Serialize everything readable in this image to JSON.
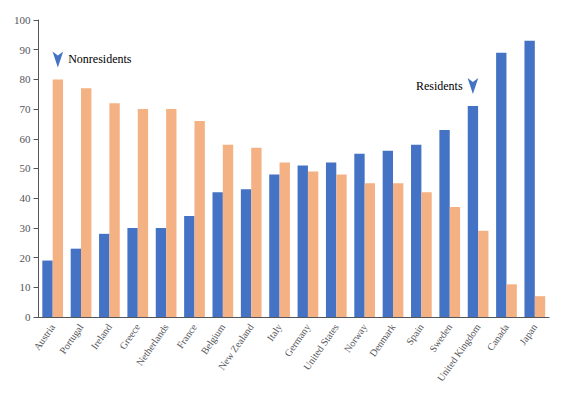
{
  "chart_data": {
    "type": "bar",
    "categories": [
      "Austria",
      "Portugal",
      "Ireland",
      "Greece",
      "Netherlands",
      "France",
      "Belgium",
      "New Zealand",
      "Italy",
      "Germany",
      "United States",
      "Norway",
      "Denmark",
      "Spain",
      "Sweden",
      "United Kingdom",
      "Canada",
      "Japan"
    ],
    "series": [
      {
        "name": "Residents",
        "color": "#4472C4",
        "values": [
          19,
          23,
          28,
          30,
          30,
          34,
          42,
          43,
          48,
          51,
          52,
          55,
          56,
          58,
          63,
          71,
          89,
          93
        ]
      },
      {
        "name": "Nonresidents",
        "color": "#F4B183",
        "values": [
          80,
          77,
          72,
          70,
          70,
          66,
          58,
          57,
          52,
          49,
          48,
          45,
          45,
          42,
          37,
          29,
          11,
          7
        ]
      }
    ],
    "ylim": [
      0,
      100
    ],
    "yticks": [
      0,
      10,
      20,
      30,
      40,
      50,
      60,
      70,
      80,
      90,
      100
    ],
    "grid": false,
    "annotations": [
      {
        "text": "Nonresidents",
        "series": "Nonresidents",
        "category": "Austria"
      },
      {
        "text": "Residents",
        "series": "Residents",
        "category": "United Kingdom"
      }
    ]
  }
}
